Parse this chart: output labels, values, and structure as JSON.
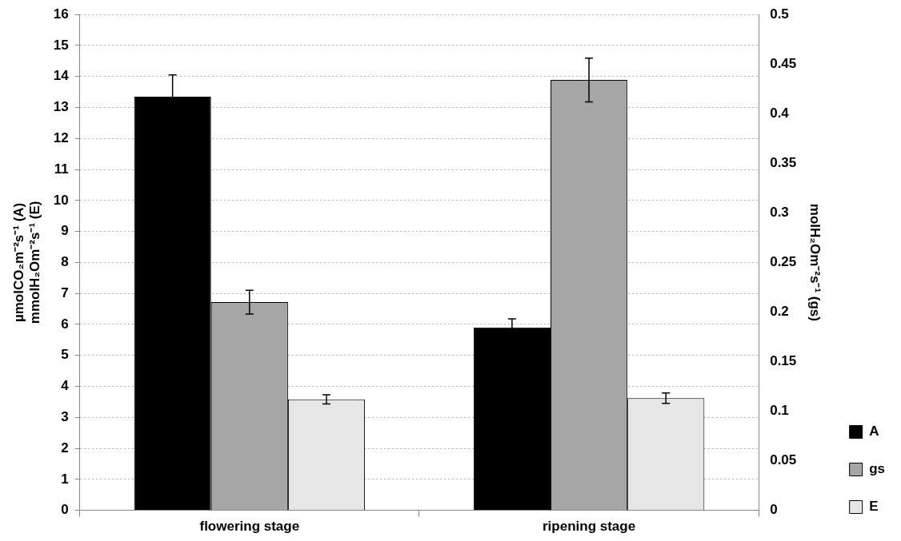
{
  "chart_data": {
    "type": "bar",
    "categories": [
      "flowering stage",
      "ripening stage"
    ],
    "ylabel": "µmolCO₂m⁻²s⁻¹ (A)\nmmolH₂Om⁻²s⁻¹ (E)",
    "y2label": "molH₂Om⁻²s⁻¹ (gs)",
    "series": [
      {
        "name": "A",
        "color": "#000000",
        "values": [
          13.35,
          5.9
        ],
        "errors": [
          0.7,
          0.28
        ]
      },
      {
        "name": "gs",
        "color": "#a6a6a6",
        "values": [
          0.21,
          0.434
        ],
        "errors": [
          0.012,
          0.022
        ],
        "axis": "y2"
      },
      {
        "name": "E",
        "color": "#e6e6e6",
        "values": [
          3.58,
          3.62
        ],
        "errors": [
          0.15,
          0.17
        ]
      }
    ],
    "ylim": [
      0,
      16
    ],
    "yticks": [
      0,
      1,
      2,
      3,
      4,
      5,
      6,
      7,
      8,
      9,
      10,
      11,
      12,
      13,
      14,
      15,
      16
    ],
    "y2lim": [
      0,
      0.5
    ],
    "y2ticks": [
      0,
      0.05,
      0.1,
      0.15,
      0.2,
      0.25,
      0.3,
      0.35,
      0.4,
      0.45,
      0.5
    ],
    "grid": "y",
    "legend": "bottom right"
  }
}
